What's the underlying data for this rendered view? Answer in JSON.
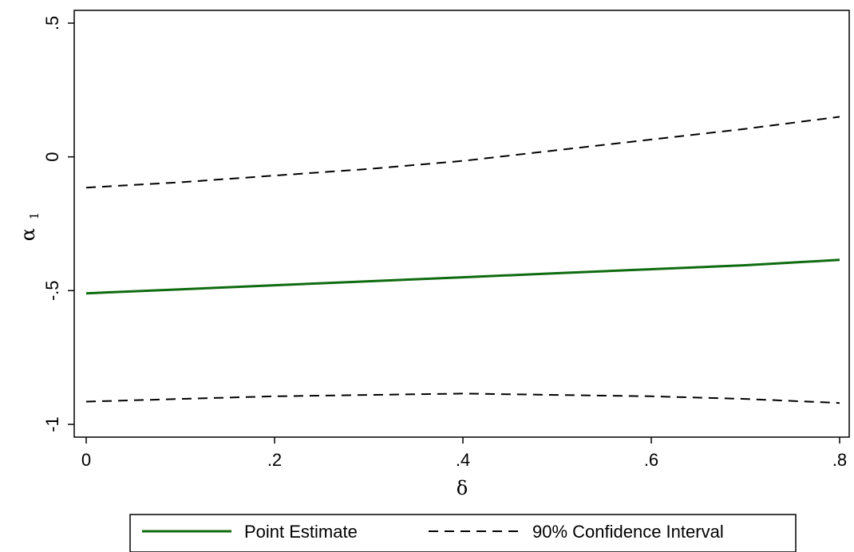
{
  "chart_data": {
    "type": "line",
    "title": "",
    "xlabel": "δ",
    "ylabel": "α",
    "ylabel_subscript": "1",
    "xlim": [
      0,
      0.8
    ],
    "ylim": [
      -1,
      0.5
    ],
    "xticks": [
      {
        "value": 0,
        "label": "0"
      },
      {
        "value": 0.2,
        "label": ".2"
      },
      {
        "value": 0.4,
        "label": ".4"
      },
      {
        "value": 0.6,
        "label": ".6"
      },
      {
        "value": 0.8,
        "label": ".8"
      }
    ],
    "yticks": [
      {
        "value": -1,
        "label": "-1"
      },
      {
        "value": -0.5,
        "label": "-.5"
      },
      {
        "value": 0,
        "label": "0"
      },
      {
        "value": 0.5,
        "label": ".5"
      }
    ],
    "grid": false,
    "legend_position": "bottom",
    "legend_entries": [
      {
        "label": "Point Estimate",
        "color": "#0f6b0f",
        "style": "solid"
      },
      {
        "label": "90% Confidence Interval",
        "color": "#000000",
        "style": "dashed"
      }
    ],
    "series": [
      {
        "legend_index": 0,
        "color": "#0f6b0f",
        "style": "solid",
        "x": [
          0,
          0.1,
          0.2,
          0.3,
          0.4,
          0.5,
          0.6,
          0.7,
          0.8
        ],
        "y": [
          -0.51,
          -0.495,
          -0.48,
          -0.465,
          -0.45,
          -0.435,
          -0.42,
          -0.405,
          -0.385
        ]
      },
      {
        "legend_index": 1,
        "color": "#000000",
        "style": "dashed",
        "x": [
          0,
          0.1,
          0.2,
          0.3,
          0.4,
          0.5,
          0.6,
          0.7,
          0.8
        ],
        "y": [
          -0.115,
          -0.095,
          -0.07,
          -0.045,
          -0.015,
          0.025,
          0.065,
          0.105,
          0.15
        ]
      },
      {
        "legend_index": 1,
        "color": "#000000",
        "style": "dashed",
        "x": [
          0,
          0.1,
          0.2,
          0.3,
          0.4,
          0.5,
          0.6,
          0.7,
          0.8
        ],
        "y": [
          -0.915,
          -0.905,
          -0.895,
          -0.89,
          -0.885,
          -0.89,
          -0.895,
          -0.905,
          -0.92
        ]
      }
    ]
  }
}
